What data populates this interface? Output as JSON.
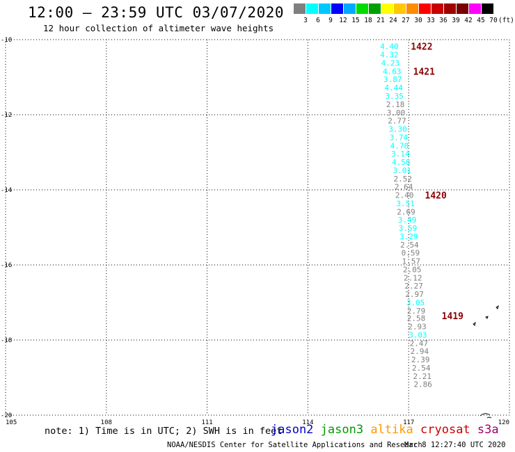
{
  "header": {
    "title": "12:00 – 23:59 UTC 03/07/2020",
    "subtitle": "12 hour collection of altimeter wave heights"
  },
  "legend": {
    "colors": [
      "#7f7f7f",
      "#00ffff",
      "#00c8ff",
      "#0000ff",
      "#00aaff",
      "#00dc00",
      "#00a000",
      "#ffff00",
      "#ffc800",
      "#ff8c00",
      "#ff0000",
      "#c80000",
      "#a00000",
      "#780000",
      "#ff00ff",
      "#000000"
    ],
    "labels": [
      "3",
      "6",
      "9",
      "12",
      "15",
      "18",
      "21",
      "24",
      "27",
      "30",
      "33",
      "36",
      "39",
      "42",
      "45",
      "70"
    ],
    "unit": "(ft)"
  },
  "chart_data": {
    "type": "scatter",
    "xlim": [
      105,
      120
    ],
    "ylim": [
      -20,
      -10
    ],
    "xticks": [
      "105",
      "108",
      "111",
      "114",
      "117",
      "120"
    ],
    "yticks": [
      "-10",
      "-12",
      "-14",
      "-16",
      "-18",
      "-20"
    ],
    "grid": "dotted",
    "series": [
      {
        "name": "jason3",
        "points": [
          {
            "x": 116.15,
            "y": -10.18,
            "v": "4.40",
            "c": "#00ffff"
          },
          {
            "x": 116.15,
            "y": -10.4,
            "v": "4.32",
            "c": "#00ffff"
          },
          {
            "x": 116.18,
            "y": -10.62,
            "v": "4.23",
            "c": "#00ffff"
          },
          {
            "x": 116.23,
            "y": -10.84,
            "v": "4.63",
            "c": "#00ffff"
          },
          {
            "x": 116.25,
            "y": -11.06,
            "v": "3.87",
            "c": "#00ffff"
          },
          {
            "x": 116.28,
            "y": -11.28,
            "v": "4.44",
            "c": "#00ffff"
          },
          {
            "x": 116.3,
            "y": -11.5,
            "v": "3.35",
            "c": "#00ffff"
          },
          {
            "x": 116.33,
            "y": -11.72,
            "v": "2.18",
            "c": "#7f7f7f"
          },
          {
            "x": 116.35,
            "y": -11.94,
            "v": "3.00",
            "c": "#7f7f7f"
          },
          {
            "x": 116.38,
            "y": -12.16,
            "v": "2.77",
            "c": "#7f7f7f"
          },
          {
            "x": 116.4,
            "y": -12.38,
            "v": "3.30",
            "c": "#00ffff"
          },
          {
            "x": 116.43,
            "y": -12.6,
            "v": "3.74",
            "c": "#00ffff"
          },
          {
            "x": 116.45,
            "y": -12.82,
            "v": "4.78",
            "c": "#00ffff"
          },
          {
            "x": 116.48,
            "y": -13.04,
            "v": "3.14",
            "c": "#00ffff"
          },
          {
            "x": 116.5,
            "y": -13.26,
            "v": "4.58",
            "c": "#00ffff"
          },
          {
            "x": 116.53,
            "y": -13.48,
            "v": "3.01",
            "c": "#00ffff"
          },
          {
            "x": 116.55,
            "y": -13.7,
            "v": "2.52",
            "c": "#7f7f7f"
          },
          {
            "x": 116.58,
            "y": -13.92,
            "v": "2.64",
            "c": "#7f7f7f"
          },
          {
            "x": 116.6,
            "y": -14.14,
            "v": "2.40",
            "c": "#7f7f7f"
          },
          {
            "x": 116.63,
            "y": -14.36,
            "v": "3.51",
            "c": "#00ffff"
          },
          {
            "x": 116.65,
            "y": -14.58,
            "v": "2.69",
            "c": "#7f7f7f"
          },
          {
            "x": 116.68,
            "y": -14.8,
            "v": "3.49",
            "c": "#00ffff"
          },
          {
            "x": 116.7,
            "y": -15.02,
            "v": "3.59",
            "c": "#00ffff"
          },
          {
            "x": 116.73,
            "y": -15.24,
            "v": "3.29",
            "c": "#00ffff"
          },
          {
            "x": 116.75,
            "y": -15.46,
            "v": "2.54",
            "c": "#7f7f7f"
          },
          {
            "x": 116.78,
            "y": -15.68,
            "v": "0.59",
            "c": "#7f7f7f"
          },
          {
            "x": 116.8,
            "y": -15.9,
            "v": "1.57",
            "c": "#7f7f7f"
          },
          {
            "x": 116.83,
            "y": -16.12,
            "v": "2.05",
            "c": "#7f7f7f"
          },
          {
            "x": 116.85,
            "y": -16.34,
            "v": "2.12",
            "c": "#7f7f7f"
          },
          {
            "x": 116.88,
            "y": -16.56,
            "v": "2.27",
            "c": "#7f7f7f"
          },
          {
            "x": 116.9,
            "y": -16.78,
            "v": "2.97",
            "c": "#7f7f7f"
          },
          {
            "x": 116.93,
            "y": -17.0,
            "v": "3.05",
            "c": "#00ffff"
          },
          {
            "x": 116.95,
            "y": -17.22,
            "v": "2.79",
            "c": "#7f7f7f"
          },
          {
            "x": 116.95,
            "y": -17.42,
            "v": "2.58",
            "c": "#7f7f7f"
          },
          {
            "x": 116.98,
            "y": -17.64,
            "v": "2.93",
            "c": "#7f7f7f"
          },
          {
            "x": 117.0,
            "y": -17.86,
            "v": "3.03",
            "c": "#00ffff"
          },
          {
            "x": 117.03,
            "y": -18.08,
            "v": "2.47",
            "c": "#7f7f7f"
          },
          {
            "x": 117.05,
            "y": -18.3,
            "v": "2.94",
            "c": "#7f7f7f"
          },
          {
            "x": 117.08,
            "y": -18.52,
            "v": "2.39",
            "c": "#7f7f7f"
          },
          {
            "x": 117.1,
            "y": -18.74,
            "v": "2.54",
            "c": "#7f7f7f"
          },
          {
            "x": 117.13,
            "y": -18.96,
            "v": "2.21",
            "c": "#7f7f7f"
          },
          {
            "x": 117.15,
            "y": -19.18,
            "v": "2.86",
            "c": "#7f7f7f"
          }
        ]
      }
    ],
    "annotations": [
      {
        "x": 116.38,
        "y": -10.18,
        "text": "1422",
        "color": "#8b0000"
      },
      {
        "x": 116.45,
        "y": -10.84,
        "text": "1421",
        "color": "#8b0000"
      },
      {
        "x": 116.8,
        "y": -14.14,
        "text": "1420",
        "color": "#8b0000"
      },
      {
        "x": 117.3,
        "y": -17.35,
        "text": "1419",
        "color": "#8b0000"
      }
    ]
  },
  "footer": {
    "note": "note: 1) Time is in UTC; 2) SWH is in feet",
    "missions": [
      {
        "name": "jason2",
        "color": "#0000cc"
      },
      {
        "name": "jason3",
        "color": "#009900"
      },
      {
        "name": "altika",
        "color": "#ff9900"
      },
      {
        "name": "cryosat",
        "color": "#cc0000"
      },
      {
        "name": "s3a",
        "color": "#990066"
      }
    ],
    "credit": "NOAA/NESDIS Center for Satellite Applications and Research",
    "timestamp": "Mar  8 12:27:40 UTC 2020"
  }
}
